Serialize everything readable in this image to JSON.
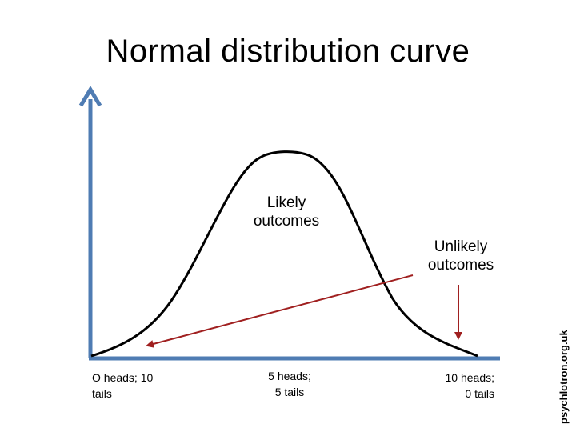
{
  "title": "Normal distribution curve",
  "labels": {
    "likely": "Likely\noutcomes",
    "unlikely": "Unlikely\noutcomes"
  },
  "ticks": {
    "left": "O heads; 10\ntails",
    "middle": "5 heads;\n5 tails",
    "right": "10 heads;\n0 tails"
  },
  "credit": "psychlotron.org.uk",
  "colors": {
    "axis": "#4f7cb3",
    "curve": "#000000",
    "arrow": "#a02020"
  }
}
